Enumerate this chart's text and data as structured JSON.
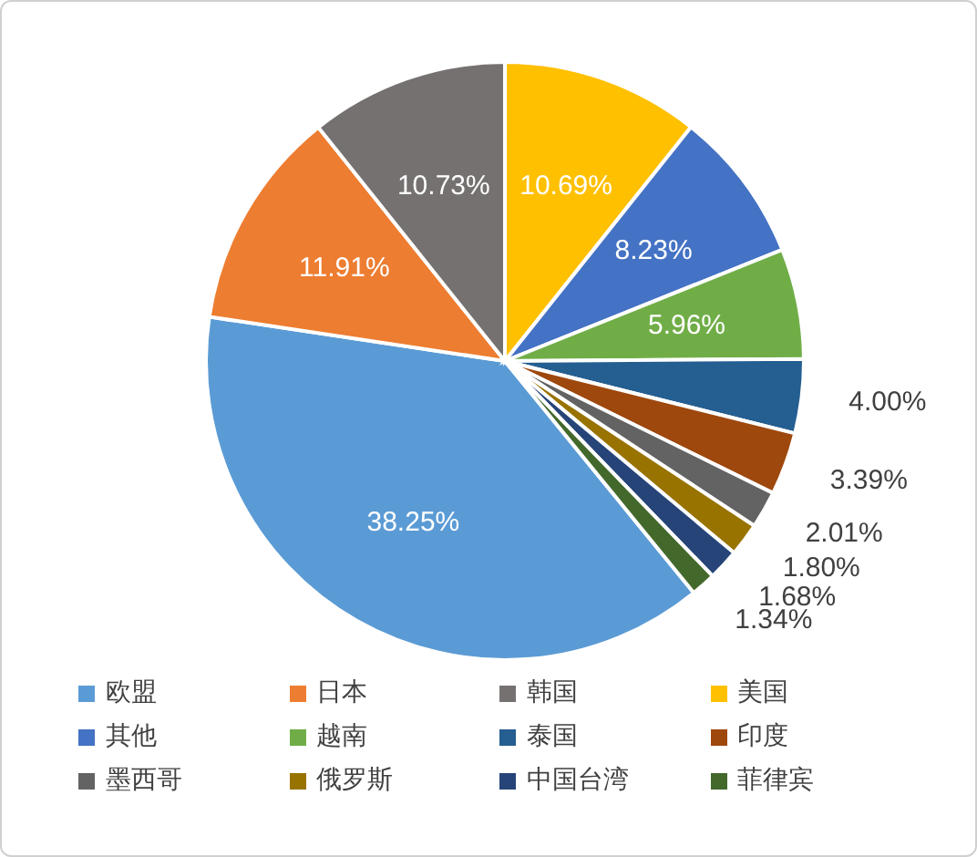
{
  "chart_data": {
    "type": "pie",
    "categories": [
      "欧盟",
      "日本",
      "韩国",
      "美国",
      "其他",
      "越南",
      "泰国",
      "印度",
      "墨西哥",
      "俄罗斯",
      "中国台湾",
      "菲律宾"
    ],
    "values": [
      38.25,
      11.91,
      10.73,
      10.69,
      8.23,
      5.96,
      4.0,
      3.39,
      2.01,
      1.8,
      1.68,
      1.34
    ],
    "colors": [
      "#5b9bd5",
      "#ed7d31",
      "#767171",
      "#ffc000",
      "#4472c4",
      "#70ad47",
      "#255e91",
      "#9e480e",
      "#636363",
      "#997300",
      "#264478",
      "#43682b"
    ],
    "value_labels": [
      "38.25%",
      "11.91%",
      "10.73%",
      "10.69%",
      "8.23%",
      "5.96%",
      "4.00%",
      "3.39%",
      "2.01%",
      "1.80%",
      "1.68%",
      "1.34%"
    ],
    "legend": "bottom"
  }
}
